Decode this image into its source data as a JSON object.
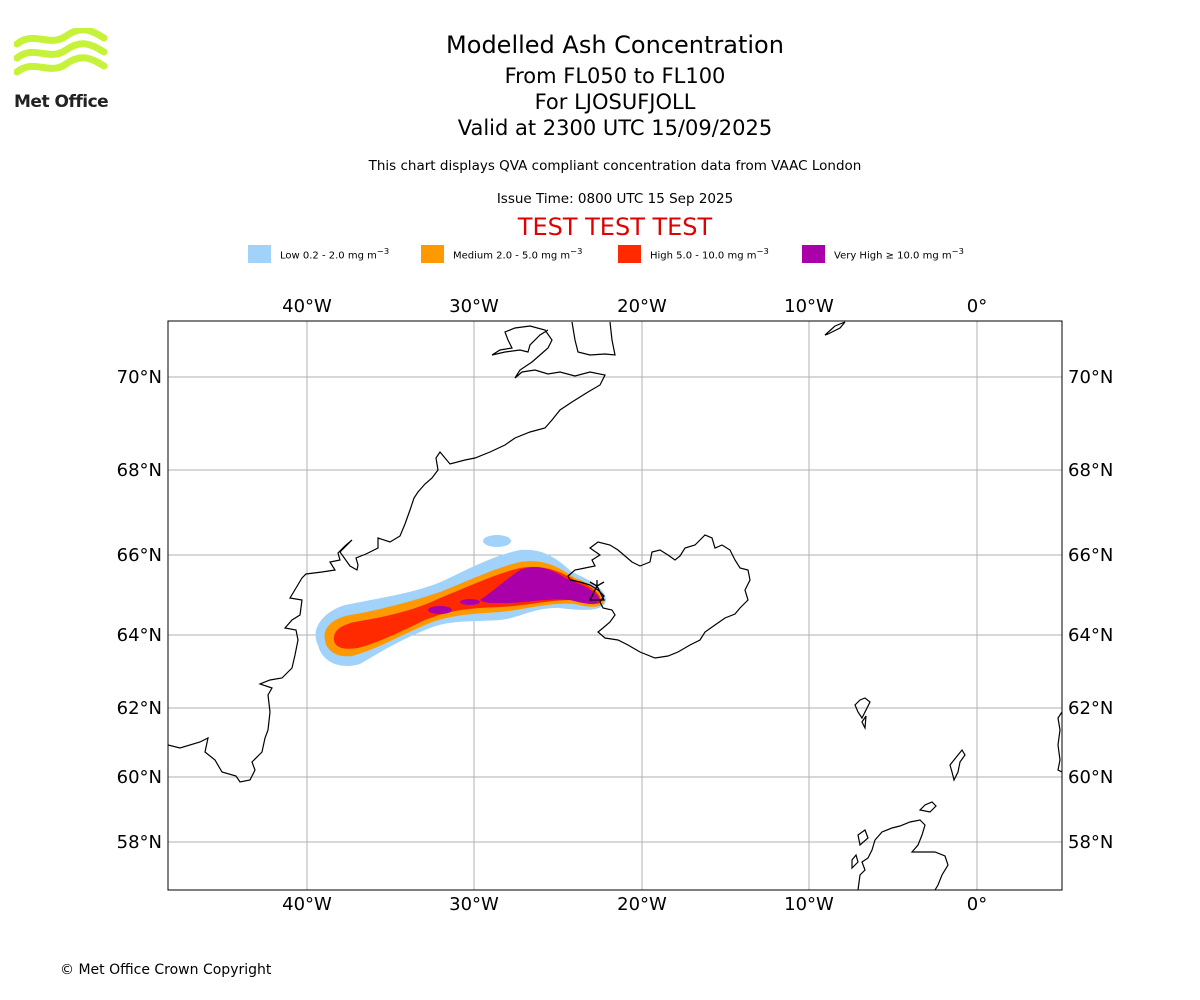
{
  "header": {
    "title": "Modelled Ash Concentration",
    "levels": "From FL050 to FL100",
    "volcano": "For LJOSUFJOLL",
    "valid": "Valid at 2300 UTC 15/09/2025",
    "description": "This chart displays QVA compliant concentration data from VAAC London",
    "issue_time": "Issue Time: 0800 UTC 15 Sep 2025",
    "test_banner": "TEST TEST TEST"
  },
  "logo": {
    "text": "Met Office",
    "color": "#c6f33a"
  },
  "legend": [
    {
      "label": "Low 0.2 - 2.0 mg m",
      "color": "#a0d2fa"
    },
    {
      "label": "Medium 2.0 - 5.0 mg m",
      "color": "#ff9900"
    },
    {
      "label": "High 5.0 - 10.0 mg m",
      "color": "#ff2a00"
    },
    {
      "label": "Very High ≥ 10.0 mg m",
      "color": "#aa00aa"
    }
  ],
  "legend_unit_exponent": "−3",
  "map": {
    "lon_labels": [
      "40°W",
      "30°W",
      "20°W",
      "10°W",
      "0°"
    ],
    "lat_labels": [
      "70°N",
      "68°N",
      "66°N",
      "64°N",
      "62°N",
      "60°N",
      "58°N"
    ],
    "grid": true
  },
  "footer": {
    "copyright": "© Met Office Crown Copyright"
  }
}
